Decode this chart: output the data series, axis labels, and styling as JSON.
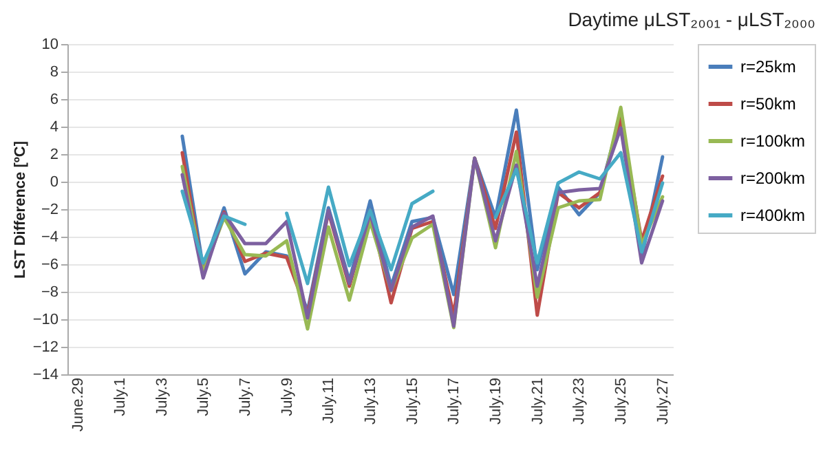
{
  "chart_data": {
    "type": "line",
    "title": "Daytime μLST₂₀₀₁ - μLST₂₀₀₀",
    "ylabel": "LST Difference [ºC]",
    "categories": [
      "June.29",
      null,
      "July.1",
      null,
      "July.3",
      null,
      "July.5",
      null,
      "July.7",
      null,
      "July.9",
      null,
      "July.11",
      null,
      "July.13",
      null,
      "July.15",
      null,
      "July.17",
      null,
      "July.19",
      null,
      "July.21",
      null,
      "July.23",
      null,
      "July.25",
      null,
      "July.27"
    ],
    "series": [
      {
        "name": "r=25km",
        "color": "#4a7ebb",
        "values": [
          null,
          null,
          null,
          null,
          null,
          3.3,
          -6.3,
          -1.9,
          -6.7,
          -5.1,
          -5.4,
          -9.4,
          -1.9,
          -7.2,
          -1.4,
          -7.6,
          -2.9,
          -2.6,
          -8.2,
          1.7,
          -2.6,
          5.2,
          -6.4,
          -0.4,
          -2.4,
          -0.8,
          4.9,
          -5.5,
          1.8
        ]
      },
      {
        "name": "r=50km",
        "color": "#be4b48",
        "values": [
          null,
          null,
          null,
          null,
          null,
          2.1,
          -6.6,
          -2.2,
          -5.8,
          -5.2,
          -5.5,
          -9.6,
          -2.2,
          -7.6,
          -2.1,
          -8.8,
          -3.4,
          -2.9,
          -9.7,
          1.7,
          -3.4,
          3.6,
          -9.7,
          -0.8,
          -1.9,
          -0.8,
          4.6,
          -4.3,
          0.4
        ]
      },
      {
        "name": "r=100km",
        "color": "#98b954",
        "values": [
          null,
          null,
          null,
          null,
          null,
          1.1,
          -6.6,
          -2.6,
          -5.3,
          -5.4,
          -4.3,
          -10.7,
          -3.3,
          -8.6,
          -2.9,
          -7.9,
          -4.1,
          -3.1,
          -10.6,
          1.7,
          -4.8,
          2.2,
          -8.4,
          -1.9,
          -1.4,
          -1.3,
          5.4,
          -4.6,
          -1.1
        ]
      },
      {
        "name": "r=200km",
        "color": "#7d60a0",
        "values": [
          null,
          null,
          null,
          null,
          null,
          0.5,
          -7.0,
          -2.3,
          -4.5,
          -4.5,
          -2.9,
          -9.9,
          -2.1,
          -7.4,
          -2.3,
          -7.9,
          -3.3,
          -2.5,
          -10.5,
          1.7,
          -4.3,
          1.2,
          -7.6,
          -0.8,
          -0.6,
          -0.5,
          3.9,
          -5.9,
          -1.4
        ]
      },
      {
        "name": "r=400km",
        "color": "#46aac5",
        "values": [
          null,
          null,
          null,
          null,
          null,
          -0.7,
          -5.9,
          -2.5,
          -3.1,
          null,
          -2.3,
          -7.4,
          -0.4,
          -6.1,
          -2.1,
          -6.4,
          -1.6,
          -0.7,
          null,
          null,
          -2.6,
          0.9,
          -5.9,
          -0.1,
          0.7,
          0.2,
          2.1,
          -5.1,
          -0.1
        ]
      }
    ],
    "ylim": [
      -14,
      10
    ],
    "yticks": [
      -14,
      -12,
      -10,
      -8,
      -6,
      -4,
      -2,
      0,
      2,
      4,
      6,
      8,
      10
    ],
    "grid": "y",
    "legend": "right",
    "marker": "none",
    "line_style": "solid"
  }
}
